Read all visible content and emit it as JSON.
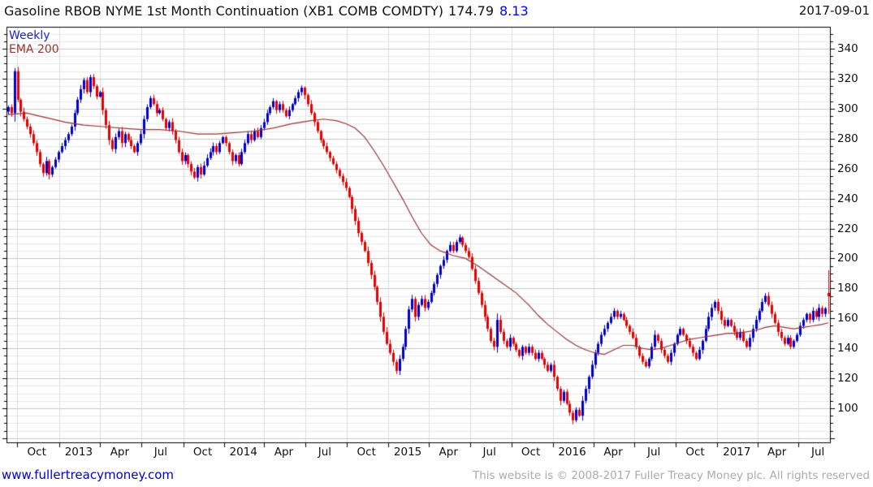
{
  "title": {
    "instrument": "Gasoline RBOB NYME 1st Month Continuation (XB1 COMB COMDTY)",
    "last": "174.79",
    "change": "8.13",
    "date": "2017-09-01"
  },
  "legend": {
    "timeframe": "Weekly",
    "overlay": "EMA 200"
  },
  "footer": {
    "site_link": "www.fullertreacymoney.com",
    "copyright": "This website is © 2008-2017 Fuller Treacy Money plc. All rights reserved"
  },
  "colors": {
    "up_candle": "#0000cc",
    "down_candle": "#e80000",
    "ema_line": "#993333",
    "grid_minor": "#e8e8e8",
    "grid_major": "#c6c6c6",
    "grid_vertical": "#dcdcdc",
    "axis": "#000000",
    "change_text": "#0000ee",
    "link_text": "#0000cc",
    "copyright_text": "#ababab"
  },
  "chart_data": {
    "type": "candlestick",
    "frequency": "weekly",
    "title": "Gasoline RBOB NYME 1st Month Continuation (XB1 COMB COMDTY)",
    "last_price": 174.79,
    "change": 8.13,
    "as_of_date": "2017-09-01",
    "overlay": "EMA 200",
    "y_axis": {
      "tick_values": [
        340,
        320,
        300,
        280,
        260,
        240,
        220,
        200,
        180,
        160,
        140,
        120,
        100
      ],
      "minor_step": 5,
      "major_step": 20,
      "price_min_visible": 78,
      "price_max_visible": 352
    },
    "x_axis": {
      "tick_labels": [
        "Oct",
        "2013",
        "Apr",
        "Jul",
        "Oct",
        "2014",
        "Apr",
        "Jul",
        "Oct",
        "2015",
        "Apr",
        "Jul",
        "Oct",
        "2016",
        "Apr",
        "Jul",
        "Oct",
        "2017",
        "Apr",
        "Jul"
      ],
      "tick_week_positions": [
        3.4,
        16.7,
        29.7,
        42.7,
        56.0,
        68.9,
        81.7,
        94.7,
        107.9,
        121.0,
        133.9,
        146.9,
        160.0,
        173.1,
        186.1,
        199.0,
        212.1,
        225.3,
        238.0,
        251.0
      ],
      "start": "2012-09",
      "end": "2017-09"
    },
    "first_open": 298,
    "weekly_closes": [
      301,
      297,
      325,
      306,
      298,
      293,
      288,
      283,
      277,
      271,
      263,
      257,
      265,
      256,
      261,
      266,
      271,
      275,
      279,
      283,
      288,
      297,
      306,
      313,
      319,
      311,
      321,
      315,
      308,
      311,
      299,
      289,
      279,
      273,
      281,
      285,
      277,
      283,
      279,
      275,
      271,
      277,
      283,
      293,
      301,
      307,
      303,
      297,
      299,
      293,
      287,
      291,
      285,
      279,
      271,
      265,
      269,
      263,
      258,
      254,
      261,
      256,
      262,
      267,
      271,
      275,
      271,
      277,
      281,
      277,
      271,
      265,
      269,
      263,
      271,
      277,
      283,
      279,
      285,
      281,
      287,
      291,
      297,
      301,
      305,
      299,
      303,
      299,
      295,
      299,
      303,
      307,
      311,
      314,
      309,
      303,
      297,
      291,
      285,
      279,
      275,
      271,
      267,
      263,
      259,
      255,
      251,
      247,
      241,
      233,
      225,
      217,
      211,
      205,
      197,
      189,
      181,
      171,
      161,
      151,
      143,
      137,
      131,
      125,
      133,
      141,
      153,
      166,
      173,
      161,
      169,
      173,
      167,
      171,
      177,
      183,
      189,
      195,
      199,
      205,
      209,
      205,
      211,
      214,
      209,
      205,
      201,
      193,
      185,
      177,
      169,
      161,
      153,
      145,
      141,
      159,
      151,
      145,
      141,
      147,
      143,
      139,
      135,
      141,
      137,
      141,
      137,
      133,
      137,
      133,
      129,
      125,
      129,
      121,
      113,
      105,
      111,
      103,
      97,
      92,
      99,
      95,
      105,
      113,
      121,
      129,
      137,
      143,
      149,
      153,
      157,
      161,
      165,
      161,
      163,
      159,
      155,
      151,
      147,
      141,
      135,
      131,
      128,
      133,
      141,
      149,
      145,
      139,
      135,
      131,
      137,
      143,
      149,
      153,
      149,
      145,
      141,
      137,
      133,
      139,
      145,
      153,
      161,
      167,
      171,
      165,
      159,
      155,
      159,
      155,
      151,
      147,
      151,
      145,
      141,
      147,
      153,
      159,
      165,
      171,
      175,
      169,
      163,
      157,
      151,
      147,
      143,
      147,
      141,
      145,
      149,
      155,
      159,
      163,
      159,
      165,
      161,
      167,
      163,
      166.66,
      174.79
    ],
    "last_candle": {
      "open": 177.0,
      "high": 192.2,
      "low": 163.0,
      "close": 174.79
    },
    "ema_anchors": [
      [
        0,
        296
      ],
      [
        6,
        297
      ],
      [
        12,
        294
      ],
      [
        18,
        291
      ],
      [
        24,
        289
      ],
      [
        30,
        288
      ],
      [
        36,
        287
      ],
      [
        42,
        286
      ],
      [
        48,
        286
      ],
      [
        54,
        285
      ],
      [
        60,
        283
      ],
      [
        66,
        283
      ],
      [
        72,
        284
      ],
      [
        78,
        285
      ],
      [
        84,
        287
      ],
      [
        90,
        290
      ],
      [
        96,
        292
      ],
      [
        100,
        293
      ],
      [
        104,
        292
      ],
      [
        107,
        290
      ],
      [
        110,
        287
      ],
      [
        113,
        281
      ],
      [
        116,
        272
      ],
      [
        119,
        262
      ],
      [
        122,
        251
      ],
      [
        125,
        240
      ],
      [
        128,
        228
      ],
      [
        131,
        217
      ],
      [
        134,
        209
      ],
      [
        137,
        205
      ],
      [
        141,
        202
      ],
      [
        145,
        200
      ],
      [
        149,
        195
      ],
      [
        153,
        189
      ],
      [
        157,
        183
      ],
      [
        161,
        177
      ],
      [
        165,
        169
      ],
      [
        168,
        162
      ],
      [
        171,
        156
      ],
      [
        174,
        151
      ],
      [
        177,
        146
      ],
      [
        180,
        142
      ],
      [
        183,
        139
      ],
      [
        186,
        137
      ],
      [
        189,
        136
      ],
      [
        192,
        139
      ],
      [
        195,
        142
      ],
      [
        198,
        142
      ],
      [
        201,
        140
      ],
      [
        204,
        139
      ],
      [
        207,
        140
      ],
      [
        210,
        142
      ],
      [
        213,
        144
      ],
      [
        216,
        146
      ],
      [
        219,
        147
      ],
      [
        222,
        148
      ],
      [
        225,
        149
      ],
      [
        228,
        150
      ],
      [
        231,
        150
      ],
      [
        234,
        151
      ],
      [
        237,
        152
      ],
      [
        240,
        154
      ],
      [
        243,
        155
      ],
      [
        246,
        154
      ],
      [
        249,
        153
      ],
      [
        252,
        154
      ],
      [
        255,
        155
      ],
      [
        258,
        156
      ],
      [
        260,
        157
      ]
    ]
  }
}
